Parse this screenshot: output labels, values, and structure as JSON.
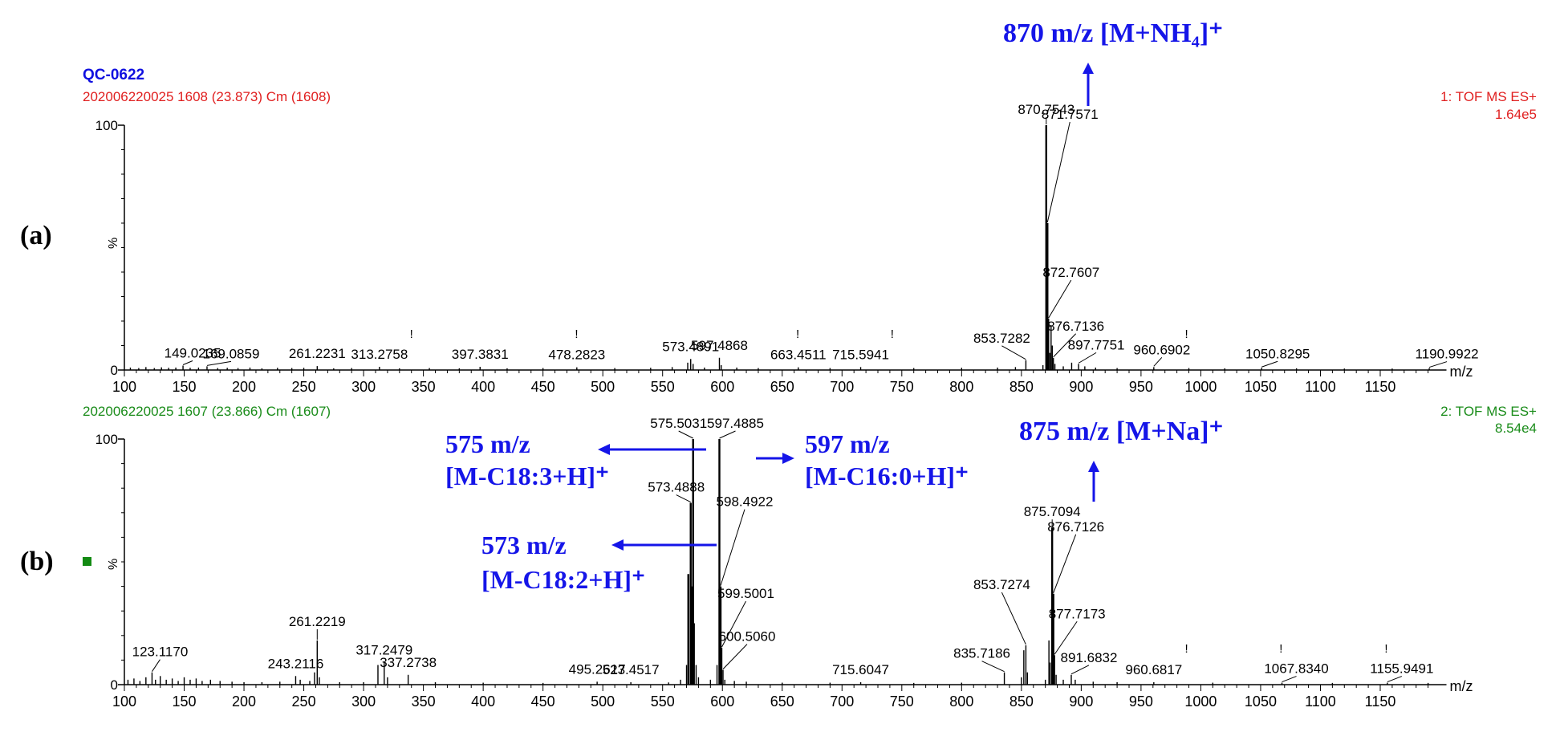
{
  "sample_label": "QC-0622",
  "colors": {
    "sample_label": "#1010e0",
    "annotation": "#1515e8",
    "axis": "#000000",
    "header_a": "#e02020",
    "header_b": "#1a8c1a",
    "marker_b": "#138a13"
  },
  "chart_data": [
    {
      "panel_label": "(a)",
      "type": "bar",
      "scan_info": "202006220025 1608 (23.873) Cm (1608)",
      "function": "1: TOF MS ES+",
      "intensity": "1.64e5",
      "ylabel": "%",
      "xlabel": "m/z",
      "xlim": [
        100,
        1200
      ],
      "ylim": [
        0,
        100
      ],
      "y_ticks": [
        "0",
        "100"
      ],
      "x_ticks": [
        100,
        150,
        200,
        250,
        300,
        350,
        400,
        450,
        500,
        550,
        600,
        650,
        700,
        750,
        800,
        850,
        900,
        950,
        1000,
        1050,
        1100,
        1150
      ],
      "peaks": [
        {
          "mz": 105,
          "y": 1
        },
        {
          "mz": 112,
          "y": 0.8
        },
        {
          "mz": 118,
          "y": 1.2
        },
        {
          "mz": 125,
          "y": 0.8
        },
        {
          "mz": 131,
          "y": 1.1
        },
        {
          "mz": 137,
          "y": 0.9
        },
        {
          "mz": 143,
          "y": 1
        },
        {
          "mz": 149.0235,
          "y": 1.8
        },
        {
          "mz": 155,
          "y": 0.9
        },
        {
          "mz": 162,
          "y": 1
        },
        {
          "mz": 169.0859,
          "y": 1.5
        },
        {
          "mz": 178,
          "y": 0.8
        },
        {
          "mz": 186,
          "y": 0.9
        },
        {
          "mz": 195,
          "y": 0.8
        },
        {
          "mz": 205,
          "y": 1
        },
        {
          "mz": 215,
          "y": 0.7
        },
        {
          "mz": 228,
          "y": 0.9
        },
        {
          "mz": 240,
          "y": 0.8
        },
        {
          "mz": 250,
          "y": 0.9
        },
        {
          "mz": 261.2231,
          "y": 1.6
        },
        {
          "mz": 275,
          "y": 0.7
        },
        {
          "mz": 290,
          "y": 0.8
        },
        {
          "mz": 313.2758,
          "y": 1.3
        },
        {
          "mz": 330,
          "y": 0.7
        },
        {
          "mz": 355,
          "y": 0.8
        },
        {
          "mz": 380,
          "y": 0.7
        },
        {
          "mz": 397.3831,
          "y": 1.3
        },
        {
          "mz": 420,
          "y": 0.7
        },
        {
          "mz": 450,
          "y": 0.8
        },
        {
          "mz": 478.2823,
          "y": 1.1
        },
        {
          "mz": 510,
          "y": 0.8
        },
        {
          "mz": 540,
          "y": 0.9
        },
        {
          "mz": 558,
          "y": 1.2
        },
        {
          "mz": 571,
          "y": 3
        },
        {
          "mz": 573.4891,
          "y": 4.5
        },
        {
          "mz": 575.5,
          "y": 2.5
        },
        {
          "mz": 585,
          "y": 1
        },
        {
          "mz": 597.4868,
          "y": 5
        },
        {
          "mz": 599,
          "y": 2
        },
        {
          "mz": 612,
          "y": 1
        },
        {
          "mz": 630,
          "y": 0.8
        },
        {
          "mz": 663.4511,
          "y": 1.1
        },
        {
          "mz": 690,
          "y": 0.8
        },
        {
          "mz": 715.5941,
          "y": 1.2
        },
        {
          "mz": 760,
          "y": 0.8
        },
        {
          "mz": 800,
          "y": 0.9
        },
        {
          "mz": 830,
          "y": 1
        },
        {
          "mz": 845,
          "y": 1.2
        },
        {
          "mz": 853.7282,
          "y": 4
        },
        {
          "mz": 868,
          "y": 2
        },
        {
          "mz": 870.7543,
          "y": 100
        },
        {
          "mz": 871.7571,
          "y": 60
        },
        {
          "mz": 872.7607,
          "y": 21
        },
        {
          "mz": 873.8,
          "y": 7
        },
        {
          "mz": 874.8,
          "y": 18
        },
        {
          "mz": 875.8,
          "y": 10
        },
        {
          "mz": 876.7136,
          "y": 5
        },
        {
          "mz": 878,
          "y": 2.5
        },
        {
          "mz": 885,
          "y": 1.5
        },
        {
          "mz": 892,
          "y": 3
        },
        {
          "mz": 897.7751,
          "y": 2.5
        },
        {
          "mz": 903,
          "y": 1.5
        },
        {
          "mz": 912,
          "y": 1
        },
        {
          "mz": 930,
          "y": 0.8
        },
        {
          "mz": 960.6902,
          "y": 1.2
        },
        {
          "mz": 990,
          "y": 0.8
        },
        {
          "mz": 1020,
          "y": 0.7
        },
        {
          "mz": 1050.8295,
          "y": 0.9
        },
        {
          "mz": 1080,
          "y": 0.7
        },
        {
          "mz": 1120,
          "y": 0.6
        },
        {
          "mz": 1160,
          "y": 0.6
        },
        {
          "mz": 1190.9922,
          "y": 0.8
        }
      ],
      "labeled_peaks": [
        {
          "mz": 149.0235,
          "label": "149.0235"
        },
        {
          "mz": 169.0859,
          "label": "169.0859"
        },
        {
          "mz": 261.2231,
          "label": "261.2231"
        },
        {
          "mz": 313.2758,
          "label": "313.2758"
        },
        {
          "mz": 397.3831,
          "label": "397.3831"
        },
        {
          "mz": 478.2823,
          "label": "478.2823"
        },
        {
          "mz": 573.4891,
          "label": "573.4891"
        },
        {
          "mz": 597.4868,
          "label": "597.4868"
        },
        {
          "mz": 663.4511,
          "label": "663.4511"
        },
        {
          "mz": 715.5941,
          "label": "715.5941"
        },
        {
          "mz": 853.7282,
          "label": "853.7282"
        },
        {
          "mz": 870.7543,
          "label": "870.7543"
        },
        {
          "mz": 871.7571,
          "label": "871.7571"
        },
        {
          "mz": 872.7607,
          "label": "872.7607"
        },
        {
          "mz": 876.7136,
          "label": "876.7136"
        },
        {
          "mz": 897.7751,
          "label": "897.7751"
        },
        {
          "mz": 960.6902,
          "label": "960.6902"
        },
        {
          "mz": 1050.8295,
          "label": "1050.8295"
        },
        {
          "mz": 1190.9922,
          "label": "1190.9922"
        }
      ],
      "exclamation_marks": [
        340,
        478,
        663,
        742,
        988
      ]
    },
    {
      "panel_label": "(b)",
      "type": "bar",
      "scan_info": "202006220025 1607 (23.866) Cm (1607)",
      "function": "2: TOF MS ES+",
      "intensity": "8.54e4",
      "ylabel": "%",
      "xlabel": "m/z",
      "xlim": [
        100,
        1200
      ],
      "ylim": [
        0,
        100
      ],
      "y_ticks": [
        "0",
        "100"
      ],
      "x_ticks": [
        100,
        150,
        200,
        250,
        300,
        350,
        400,
        450,
        500,
        550,
        600,
        650,
        700,
        750,
        800,
        850,
        900,
        950,
        1000,
        1050,
        1100,
        1150
      ],
      "peaks": [
        {
          "mz": 103,
          "y": 2
        },
        {
          "mz": 108,
          "y": 2.5
        },
        {
          "mz": 113,
          "y": 1.5
        },
        {
          "mz": 118,
          "y": 3
        },
        {
          "mz": 123.117,
          "y": 5
        },
        {
          "mz": 126,
          "y": 2
        },
        {
          "mz": 130,
          "y": 3.5
        },
        {
          "mz": 135,
          "y": 2
        },
        {
          "mz": 140,
          "y": 2.5
        },
        {
          "mz": 145,
          "y": 1.5
        },
        {
          "mz": 150,
          "y": 3
        },
        {
          "mz": 155,
          "y": 2
        },
        {
          "mz": 160,
          "y": 2.5
        },
        {
          "mz": 165,
          "y": 1.5
        },
        {
          "mz": 172,
          "y": 2
        },
        {
          "mz": 180,
          "y": 1.5
        },
        {
          "mz": 190,
          "y": 1.2
        },
        {
          "mz": 200,
          "y": 1
        },
        {
          "mz": 215,
          "y": 1
        },
        {
          "mz": 230,
          "y": 1.2
        },
        {
          "mz": 243.2116,
          "y": 3.5
        },
        {
          "mz": 247,
          "y": 2
        },
        {
          "mz": 255,
          "y": 1.5
        },
        {
          "mz": 259,
          "y": 5
        },
        {
          "mz": 261.2219,
          "y": 18
        },
        {
          "mz": 263,
          "y": 3
        },
        {
          "mz": 280,
          "y": 1
        },
        {
          "mz": 300,
          "y": 1
        },
        {
          "mz": 312,
          "y": 8
        },
        {
          "mz": 317.2479,
          "y": 9
        },
        {
          "mz": 320,
          "y": 3
        },
        {
          "mz": 337.2738,
          "y": 4
        },
        {
          "mz": 360,
          "y": 1
        },
        {
          "mz": 400,
          "y": 0.8
        },
        {
          "mz": 450,
          "y": 0.7
        },
        {
          "mz": 495.2617,
          "y": 1.2
        },
        {
          "mz": 523.4517,
          "y": 1
        },
        {
          "mz": 555,
          "y": 0.9
        },
        {
          "mz": 565,
          "y": 2
        },
        {
          "mz": 570,
          "y": 8
        },
        {
          "mz": 571.5,
          "y": 45
        },
        {
          "mz": 573.4888,
          "y": 74
        },
        {
          "mz": 574.5,
          "y": 40
        },
        {
          "mz": 575.5031,
          "y": 100
        },
        {
          "mz": 576.5,
          "y": 25
        },
        {
          "mz": 578,
          "y": 8
        },
        {
          "mz": 580,
          "y": 3
        },
        {
          "mz": 590,
          "y": 2
        },
        {
          "mz": 595.5,
          "y": 8
        },
        {
          "mz": 597.4885,
          "y": 100
        },
        {
          "mz": 598.4922,
          "y": 40
        },
        {
          "mz": 599.5001,
          "y": 15
        },
        {
          "mz": 600.506,
          "y": 6
        },
        {
          "mz": 602,
          "y": 2
        },
        {
          "mz": 610,
          "y": 1.5
        },
        {
          "mz": 620,
          "y": 1.2
        },
        {
          "mz": 650,
          "y": 0.8
        },
        {
          "mz": 690,
          "y": 0.8
        },
        {
          "mz": 715.6047,
          "y": 1
        },
        {
          "mz": 760,
          "y": 0.7
        },
        {
          "mz": 800,
          "y": 0.8
        },
        {
          "mz": 835.7186,
          "y": 5
        },
        {
          "mz": 850,
          "y": 3
        },
        {
          "mz": 852,
          "y": 14
        },
        {
          "mz": 853.7274,
          "y": 16
        },
        {
          "mz": 855,
          "y": 5
        },
        {
          "mz": 870,
          "y": 2
        },
        {
          "mz": 873,
          "y": 18
        },
        {
          "mz": 874,
          "y": 9
        },
        {
          "mz": 875.7094,
          "y": 64
        },
        {
          "mz": 876.7126,
          "y": 37
        },
        {
          "mz": 877.7173,
          "y": 12
        },
        {
          "mz": 879,
          "y": 4
        },
        {
          "mz": 885,
          "y": 2
        },
        {
          "mz": 891.6832,
          "y": 4
        },
        {
          "mz": 895,
          "y": 2
        },
        {
          "mz": 910,
          "y": 1.2
        },
        {
          "mz": 930,
          "y": 1
        },
        {
          "mz": 960.6817,
          "y": 1
        },
        {
          "mz": 1010,
          "y": 0.8
        },
        {
          "mz": 1067.834,
          "y": 0.8
        },
        {
          "mz": 1110,
          "y": 0.7
        },
        {
          "mz": 1155.9491,
          "y": 0.8
        },
        {
          "mz": 1190,
          "y": 0.7
        }
      ],
      "labeled_peaks": [
        {
          "mz": 123.117,
          "label": "123.1170"
        },
        {
          "mz": 243.2116,
          "label": "243.2116"
        },
        {
          "mz": 261.2219,
          "label": "261.2219"
        },
        {
          "mz": 317.2479,
          "label": "317.2479"
        },
        {
          "mz": 337.2738,
          "label": "337.2738"
        },
        {
          "mz": 495.2617,
          "label": "495.2617"
        },
        {
          "mz": 523.4517,
          "label": "523.4517"
        },
        {
          "mz": 573.4888,
          "label": "573.4888"
        },
        {
          "mz": 575.5031,
          "label": "575.5031"
        },
        {
          "mz": 597.4885,
          "label": "597.4885"
        },
        {
          "mz": 598.4922,
          "label": "598.4922"
        },
        {
          "mz": 599.5001,
          "label": "599.5001"
        },
        {
          "mz": 600.506,
          "label": "600.5060"
        },
        {
          "mz": 715.6047,
          "label": "715.6047"
        },
        {
          "mz": 835.7186,
          "label": "835.7186"
        },
        {
          "mz": 853.7274,
          "label": "853.7274"
        },
        {
          "mz": 875.7094,
          "label": "875.7094"
        },
        {
          "mz": 876.7126,
          "label": "876.7126"
        },
        {
          "mz": 877.7173,
          "label": "877.7173"
        },
        {
          "mz": 891.6832,
          "label": "891.6832"
        },
        {
          "mz": 960.6817,
          "label": "960.6817"
        },
        {
          "mz": 1067.834,
          "label": "1067.8340"
        },
        {
          "mz": 1155.9491,
          "label": "1155.9491"
        }
      ],
      "exclamation_marks": [
        988,
        1067,
        1155
      ]
    }
  ],
  "annotations": {
    "a_top": "870 m/z  [M+NH₄]⁺",
    "b_875": "875 m/z  [M+Na]⁺",
    "b_575_mz": "575 m/z",
    "b_575_ion": "[M-C18:3+H]⁺",
    "b_597_mz": "597 m/z",
    "b_597_ion": "[M-C16:0+H]⁺",
    "b_573_mz": "573 m/z",
    "b_573_ion": "[M-C18:2+H]⁺"
  }
}
